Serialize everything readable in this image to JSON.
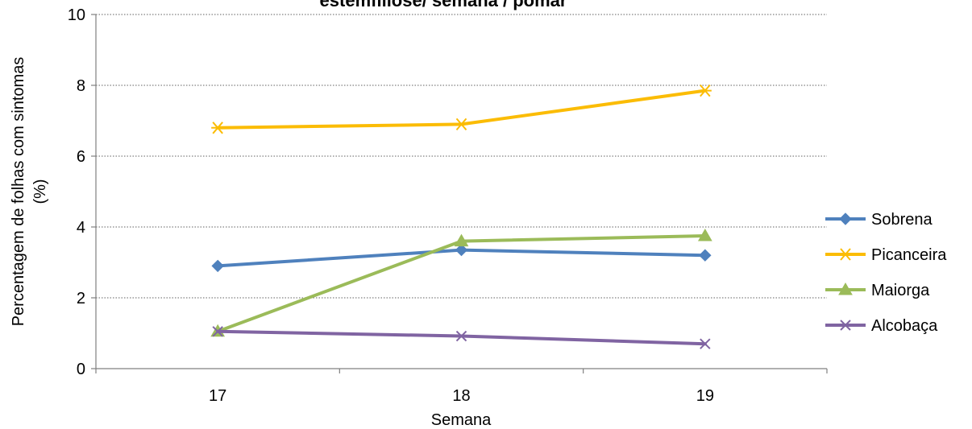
{
  "chart_data": {
    "type": "line",
    "title": "estemfiliose/ semana / pomar",
    "xlabel": "Semana",
    "ylabel_line1": "Percentagem de folhas com sintomas",
    "ylabel_line2": "(%)",
    "x": [
      17,
      18,
      19
    ],
    "x_tick_labels": [
      "17",
      "18",
      "19"
    ],
    "xlim": [
      16.5,
      19.5
    ],
    "ylim": [
      0,
      10
    ],
    "y_ticks": [
      0,
      2,
      4,
      6,
      8,
      10
    ],
    "grid": "horizontal-dotted",
    "legend_position": "right",
    "series": [
      {
        "name": "Sobrena",
        "values": [
          2.9,
          3.35,
          3.2
        ],
        "color": "#4f81bd",
        "marker": "diamond"
      },
      {
        "name": "Picanceira",
        "values": [
          6.8,
          6.9,
          7.85
        ],
        "color": "#fbbc05",
        "marker": "asterisk"
      },
      {
        "name": "Maiorga",
        "values": [
          1.05,
          3.6,
          3.75
        ],
        "color": "#9bbb59",
        "marker": "triangle"
      },
      {
        "name": "Alcobaça",
        "values": [
          1.05,
          0.92,
          0.7
        ],
        "color": "#8064a2",
        "marker": "x"
      }
    ]
  }
}
